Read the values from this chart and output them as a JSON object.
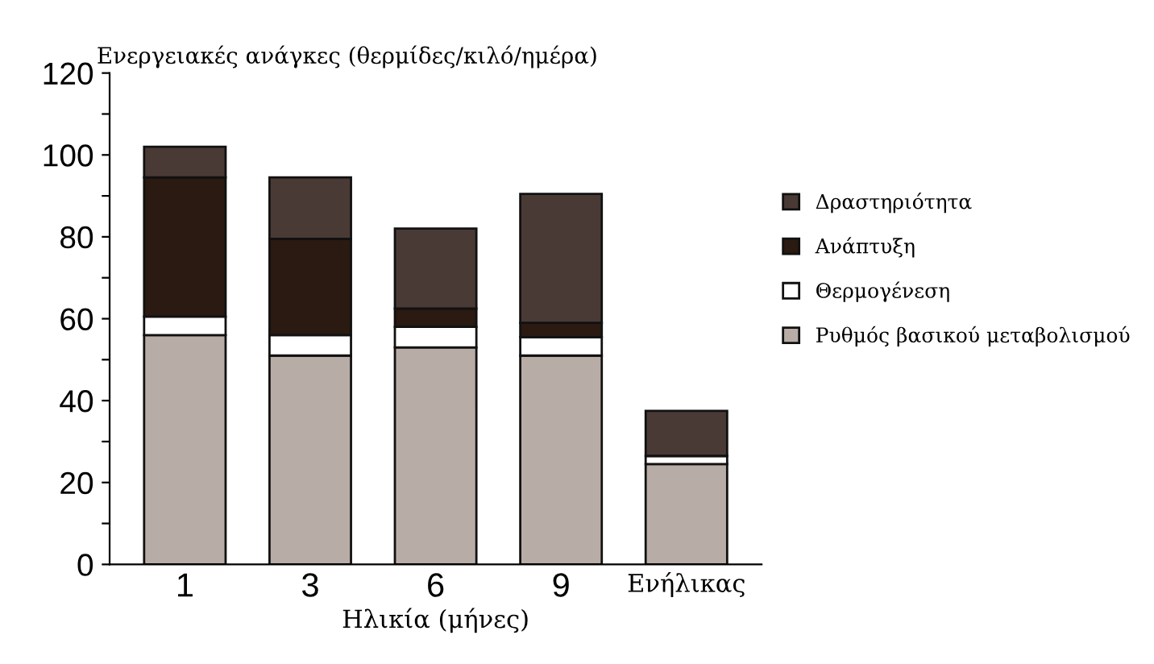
{
  "chart_data": {
    "type": "bar",
    "stacked": true,
    "ylabel": "Ενεργειακές ανάγκες (θερμίδες/κιλό/ημέρα)",
    "xlabel": "Ηλικία (μήνες)",
    "categories": [
      "1",
      "3",
      "6",
      "9",
      "Ενήλικας"
    ],
    "series": [
      {
        "name": "Ρυθμός βασικού μεταβολισμού",
        "color": "#b8aca6",
        "values": [
          56,
          51,
          53,
          51,
          24.5
        ]
      },
      {
        "name": "Θερμογένεση",
        "color": "#ffffff",
        "values": [
          4.5,
          5,
          5,
          4.5,
          2
        ]
      },
      {
        "name": "Ανάπτυξη",
        "color": "#2a1a12",
        "values": [
          34,
          23.5,
          4.5,
          3.5,
          0
        ]
      },
      {
        "name": "Δραστηριότητα",
        "color": "#4a3a36",
        "values": [
          7.5,
          15,
          19.5,
          31.5,
          11
        ]
      }
    ],
    "ylim": [
      0,
      120
    ],
    "yticks": [
      0,
      {
        "value": 10,
        "label": null
      },
      20,
      {
        "value": 30,
        "label": null
      },
      40,
      {
        "value": 50,
        "label": null
      },
      60,
      {
        "value": 70,
        "label": null
      },
      80,
      {
        "value": 90,
        "label": null
      },
      100,
      {
        "value": 110,
        "label": null
      },
      120
    ],
    "grid": false,
    "legend": "right"
  }
}
